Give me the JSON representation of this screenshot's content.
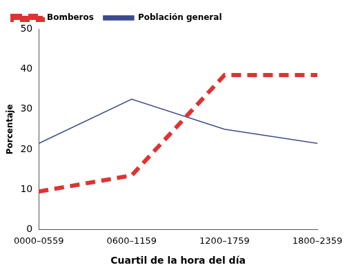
{
  "chart_data": {
    "type": "line",
    "x_label": "Cuartil de la hora del día",
    "y_label": "Porcentaje",
    "categories": [
      "0000–0559",
      "0600–1159",
      "1200–1759",
      "1800–2359"
    ],
    "series": [
      {
        "name": "Bomberos",
        "color": "#e03232",
        "line_style": "dashed",
        "marker": "none",
        "values": [
          9.5,
          13.5,
          38.5,
          38.5
        ]
      },
      {
        "name": "Población general",
        "color": "#3b4a8c",
        "line_style": "solid",
        "marker": "none",
        "values": [
          21.5,
          32.5,
          25,
          21.5
        ]
      }
    ],
    "ylim": [
      0,
      50
    ],
    "yticks": [
      0,
      10,
      20,
      30,
      40,
      50
    ],
    "grid": false,
    "legend": "top"
  }
}
